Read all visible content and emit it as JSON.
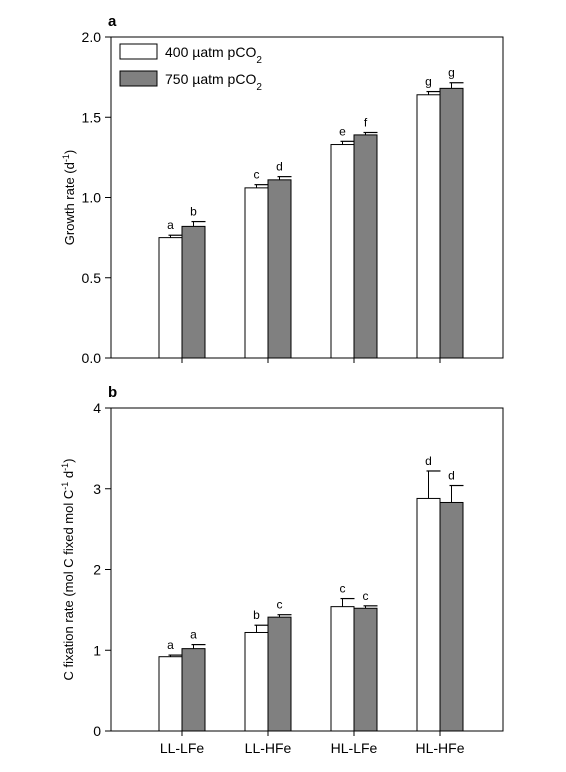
{
  "chart_data": [
    {
      "type": "bar",
      "panel_label": "a",
      "title": "",
      "xlabel": "",
      "ylabel": "Growth rate (d",
      "ylabel_sup": "-1",
      "ylabel_close": ")",
      "ylim": [
        0,
        2.0
      ],
      "yticks": [
        "0.0",
        "0.5",
        "1.0",
        "1.5",
        "2.0"
      ],
      "ytick_values": [
        0,
        0.5,
        1.0,
        1.5,
        2.0
      ],
      "categories": [
        "LL-LFe",
        "LL-HFe",
        "HL-LFe",
        "HL-HFe"
      ],
      "show_category_labels": false,
      "legend_position": "top-left",
      "series": [
        {
          "name": "400  µatm pCO",
          "name_sub": "2",
          "color": "#ffffff",
          "values": [
            0.75,
            1.06,
            1.33,
            1.64
          ],
          "errors": [
            0.015,
            0.02,
            0.02,
            0.02
          ],
          "sig_labels": [
            "a",
            "c",
            "e",
            "g"
          ]
        },
        {
          "name": "750  µatm pCO",
          "name_sub": "2",
          "color": "#808080",
          "values": [
            0.82,
            1.11,
            1.39,
            1.68
          ],
          "errors": [
            0.03,
            0.02,
            0.015,
            0.035
          ],
          "sig_labels": [
            "b",
            "d",
            "f",
            "g"
          ]
        }
      ]
    },
    {
      "type": "bar",
      "panel_label": "b",
      "title": "",
      "xlabel": "",
      "ylabel": "C fixation rate (mol C fixed mol C",
      "ylabel_sup": "-1",
      "ylabel_mid": " d",
      "ylabel_sup2": "-1",
      "ylabel_close": ")",
      "ylim": [
        0,
        4
      ],
      "yticks": [
        "0",
        "1",
        "2",
        "3",
        "4"
      ],
      "ytick_values": [
        0,
        1,
        2,
        3,
        4
      ],
      "categories": [
        "LL-LFe",
        "LL-HFe",
        "HL-LFe",
        "HL-HFe"
      ],
      "show_category_labels": true,
      "series": [
        {
          "color": "#ffffff",
          "values": [
            0.92,
            1.22,
            1.54,
            2.88
          ],
          "errors": [
            0.02,
            0.09,
            0.1,
            0.34
          ],
          "sig_labels": [
            "a",
            "b",
            "c",
            "d"
          ]
        },
        {
          "color": "#808080",
          "values": [
            1.02,
            1.41,
            1.52,
            2.83
          ],
          "errors": [
            0.05,
            0.03,
            0.03,
            0.21
          ],
          "sig_labels": [
            "a",
            "c",
            "c",
            "d"
          ]
        }
      ]
    }
  ]
}
